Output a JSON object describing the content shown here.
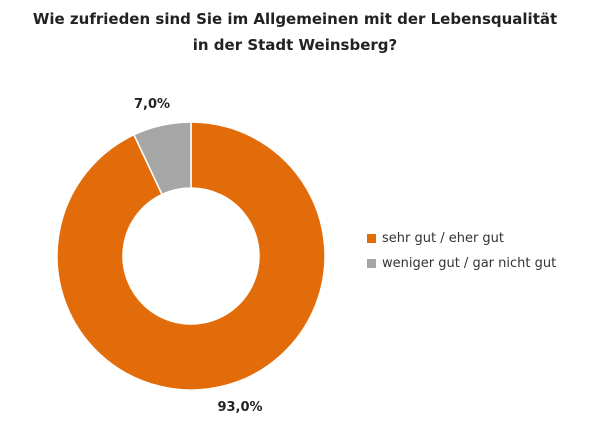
{
  "chart_data": {
    "type": "pie",
    "variant": "donut",
    "title_lines": [
      "Wie zufrieden sind Sie im Allgemeinen mit der Lebensqualität",
      "in der Stadt Weinsberg?"
    ],
    "categories": [
      "sehr gut / eher gut",
      "weniger gut / gar nicht gut"
    ],
    "values": [
      93.0,
      7.0
    ],
    "value_labels": [
      "93,0%",
      "7,0%"
    ],
    "colors": [
      "#e36c0a",
      "#a6a6a6"
    ],
    "legend_placement": "right"
  }
}
